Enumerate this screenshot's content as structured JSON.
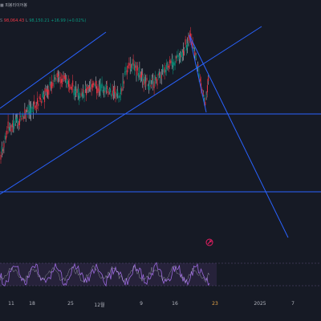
{
  "header": {
    "row1_badge": "■",
    "row1_text": "피봉리이어봉",
    "row2_prefix": "S",
    "row2_price1": "98,064.43",
    "row2_sep": "L",
    "row2_price2": "98,150.21",
    "row2_change": "+16.99 (+0.02%)"
  },
  "colors": {
    "background": "#161a25",
    "trendline": "#2962ff",
    "candle_up": "#089981",
    "candle_down": "#f23645",
    "candle_white": "#d1d4dc",
    "osc_line": "#9c6ade",
    "osc_band": "#2a2440",
    "price_marker": "#e91e63"
  },
  "icons": {
    "price_marker": "alert-marker-icon"
  },
  "xaxis": {
    "labels": [
      {
        "text": "11",
        "x": 14
      },
      {
        "text": "18",
        "x": 40
      },
      {
        "text": "25",
        "x": 88
      },
      {
        "text": "12월",
        "x": 124
      },
      {
        "text": "9",
        "x": 176
      },
      {
        "text": "16",
        "x": 218
      },
      {
        "text": "23",
        "x": 268,
        "highlight": true
      },
      {
        "text": "2025",
        "x": 324
      },
      {
        "text": "7",
        "x": 365
      }
    ]
  }
}
